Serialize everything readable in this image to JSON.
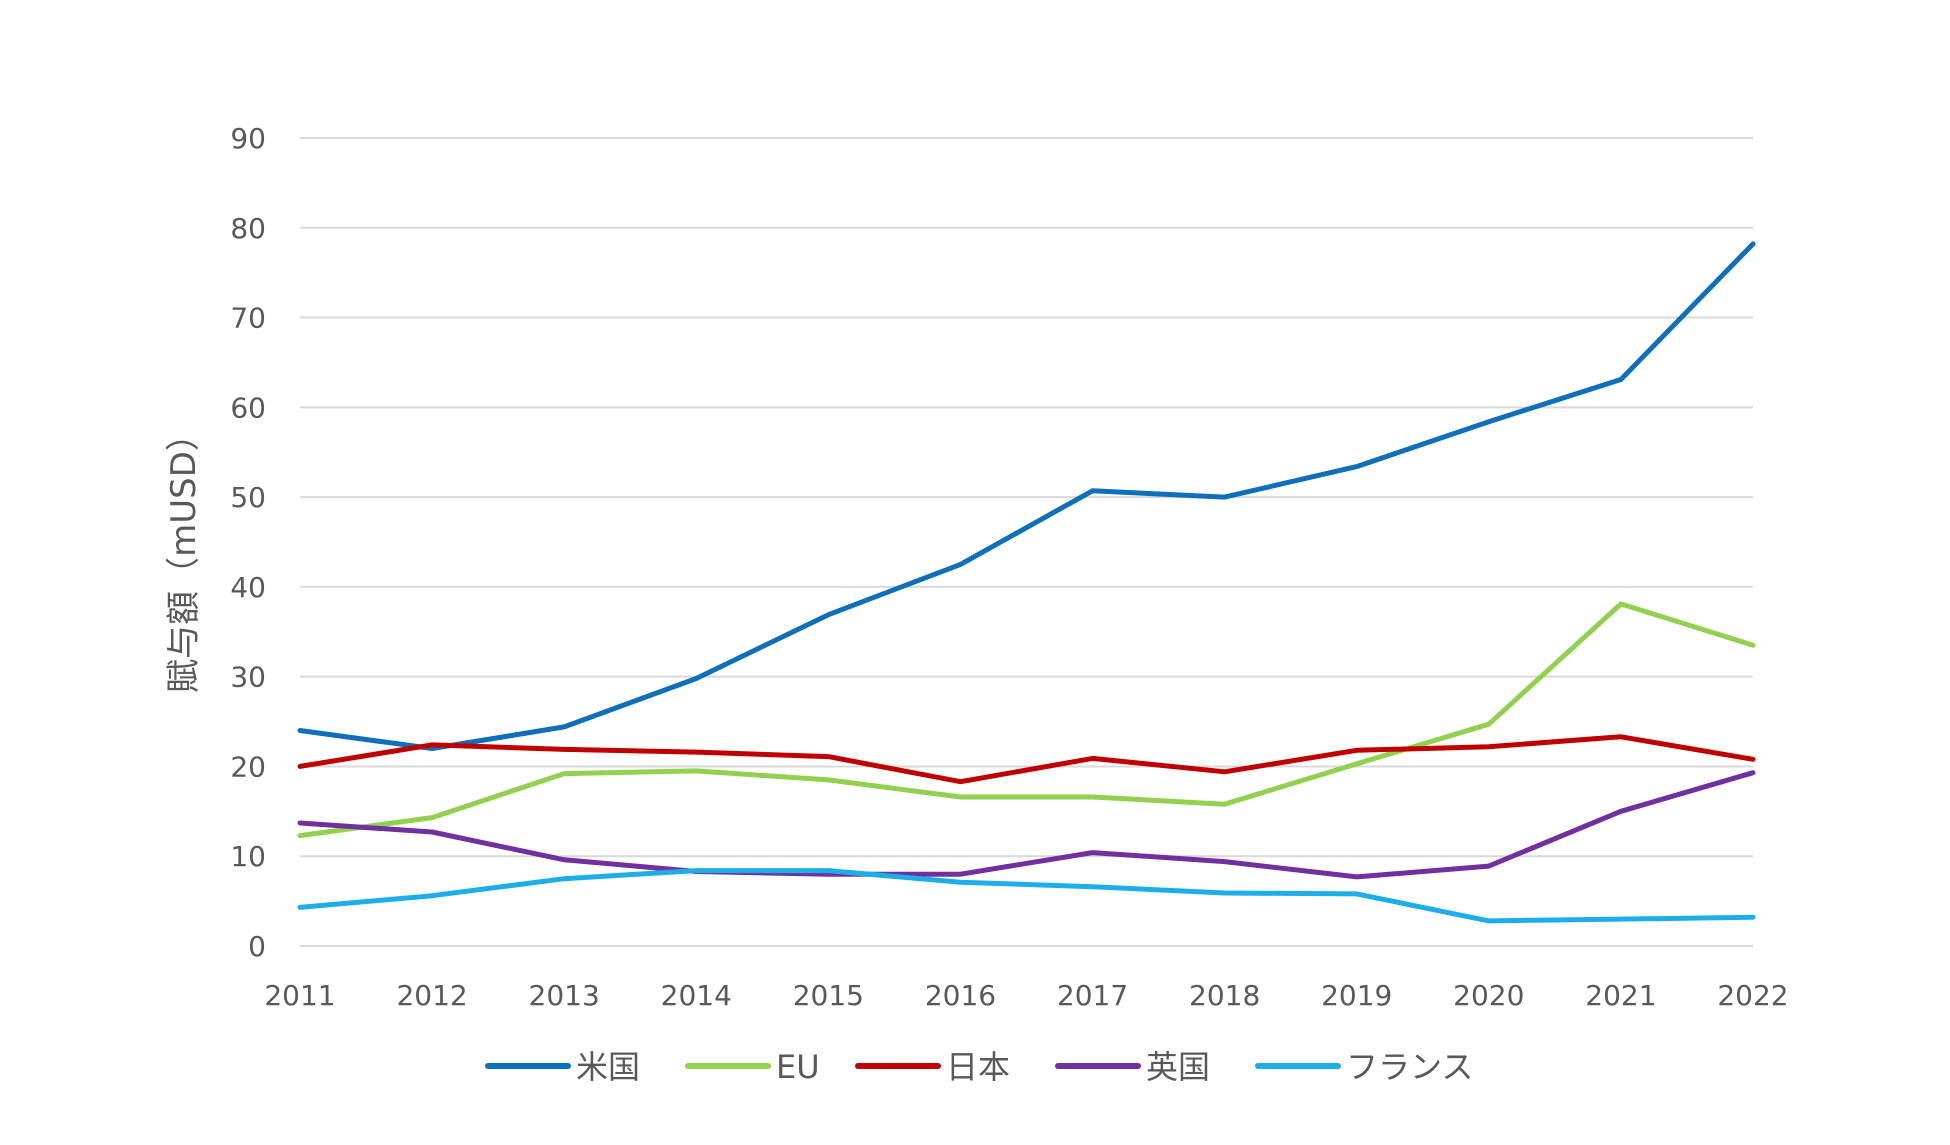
{
  "chart_data": {
    "type": "line",
    "title": "",
    "xlabel": "",
    "ylabel": "賦与額（mUSD）",
    "ylim": [
      0,
      90
    ],
    "yticks": [
      0,
      10,
      20,
      30,
      40,
      50,
      60,
      70,
      80,
      90
    ],
    "grid": true,
    "legend_position": "bottom",
    "categories": [
      "2011",
      "2012",
      "2013",
      "2014",
      "2015",
      "2016",
      "2017",
      "2018",
      "2019",
      "2020",
      "2021",
      "2022"
    ],
    "series": [
      {
        "name": "米国",
        "color": "#0F6FBA",
        "values": [
          24.0,
          22.0,
          24.4,
          29.8,
          36.9,
          42.5,
          50.7,
          50.0,
          53.4,
          58.4,
          63.1,
          78.2
        ]
      },
      {
        "name": "EU",
        "color": "#92D050",
        "values": [
          12.3,
          14.3,
          19.2,
          19.5,
          18.5,
          16.6,
          16.6,
          15.8,
          20.3,
          24.7,
          38.1,
          33.5
        ]
      },
      {
        "name": "日本",
        "color": "#C00000",
        "values": [
          20.0,
          22.4,
          21.9,
          21.6,
          21.1,
          18.3,
          20.9,
          19.4,
          21.8,
          22.2,
          23.3,
          20.8
        ]
      },
      {
        "name": "英国",
        "color": "#7030A0",
        "values": [
          13.7,
          12.7,
          9.6,
          8.3,
          8.0,
          8.0,
          10.4,
          9.4,
          7.7,
          8.9,
          15.0,
          19.3
        ]
      },
      {
        "name": "フランス",
        "color": "#1DAEEA",
        "values": [
          4.3,
          5.6,
          7.5,
          8.4,
          8.4,
          7.1,
          6.6,
          5.9,
          5.8,
          2.8,
          3.0,
          3.2
        ]
      }
    ]
  }
}
